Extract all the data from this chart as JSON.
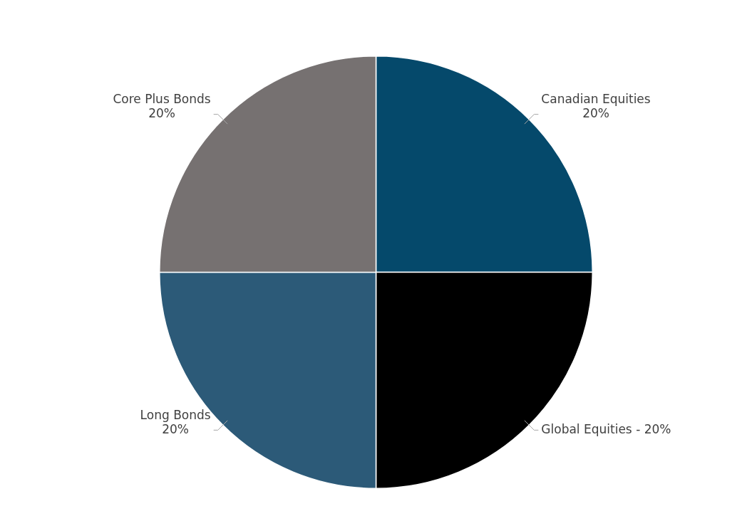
{
  "chart_data": {
    "type": "pie",
    "categories": [
      "Canadian Equities",
      "Global Equities -",
      "Long Bonds",
      "Core Plus Bonds"
    ],
    "values": [
      20,
      20,
      20,
      20
    ],
    "colors": [
      "#05496b",
      "#000000",
      "#2c5a78",
      "#767171"
    ],
    "value_labels": [
      "20%",
      "20%",
      "20%",
      "20%"
    ],
    "legend": false
  }
}
